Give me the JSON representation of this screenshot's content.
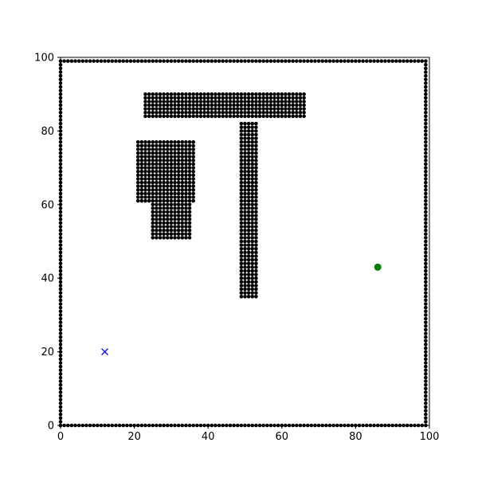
{
  "chart_data": {
    "type": "scatter",
    "title": "",
    "xlabel": "",
    "ylabel": "",
    "xlim": [
      0,
      100
    ],
    "ylim": [
      0,
      100
    ],
    "grid": false,
    "legend": "none",
    "xticks": [
      "0",
      "20",
      "40",
      "60",
      "80",
      "100"
    ],
    "yticks": [
      "0",
      "20",
      "40",
      "60",
      "80",
      "100"
    ],
    "obstacles": {
      "marker": "dot",
      "color": "#000000",
      "regions": [
        {
          "x": [
            0,
            99
          ],
          "y": [
            99,
            99
          ]
        },
        {
          "x": [
            0,
            99
          ],
          "y": [
            0,
            0
          ]
        },
        {
          "x": [
            0,
            0
          ],
          "y": [
            0,
            99
          ]
        },
        {
          "x": [
            99,
            99
          ],
          "y": [
            0,
            99
          ]
        },
        {
          "x": [
            23,
            66
          ],
          "y": [
            84,
            90
          ]
        },
        {
          "x": [
            21,
            36
          ],
          "y": [
            61,
            77
          ]
        },
        {
          "x": [
            25,
            35
          ],
          "y": [
            51,
            60
          ]
        },
        {
          "x": [
            49,
            53
          ],
          "y": [
            35,
            82
          ]
        }
      ]
    },
    "start": {
      "x": 12,
      "y": 20,
      "marker": "x",
      "color": "#0000ff"
    },
    "goal": {
      "x": 86,
      "y": 43,
      "marker": "circle",
      "color": "#008000"
    }
  }
}
